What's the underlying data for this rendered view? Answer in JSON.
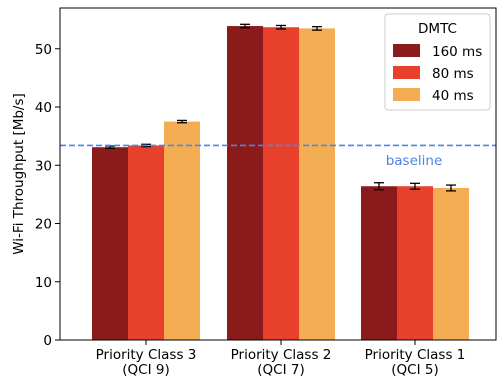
{
  "chart_data": {
    "type": "bar",
    "ylabel": "Wi-Fi Throughput [Mb/s]",
    "xlabel": "",
    "ylim": [
      0,
      57
    ],
    "yticks": [
      0,
      10,
      20,
      30,
      40,
      50
    ],
    "grid": false,
    "categories": [
      [
        "Priority Class 3",
        "(QCI 9)"
      ],
      [
        "Priority Class 2",
        "(QCI 7)"
      ],
      [
        "Priority Class 1",
        "(QCI 5)"
      ]
    ],
    "series": [
      {
        "name": "160 ms",
        "color": "#8b1a1a",
        "values": [
          33.1,
          53.9,
          26.4
        ],
        "errors": [
          0.2,
          0.3,
          0.6
        ]
      },
      {
        "name": "80 ms",
        "color": "#e8412b",
        "values": [
          33.4,
          53.7,
          26.4
        ],
        "errors": [
          0.2,
          0.3,
          0.5
        ]
      },
      {
        "name": "40 ms",
        "color": "#f5ad54",
        "values": [
          37.5,
          53.5,
          26.1
        ],
        "errors": [
          0.2,
          0.3,
          0.5
        ]
      }
    ],
    "legend": {
      "title": "DMTC",
      "position": "top-right"
    },
    "baseline": {
      "value": 33.4,
      "label": "baseline",
      "color": "#4a86e8"
    }
  }
}
